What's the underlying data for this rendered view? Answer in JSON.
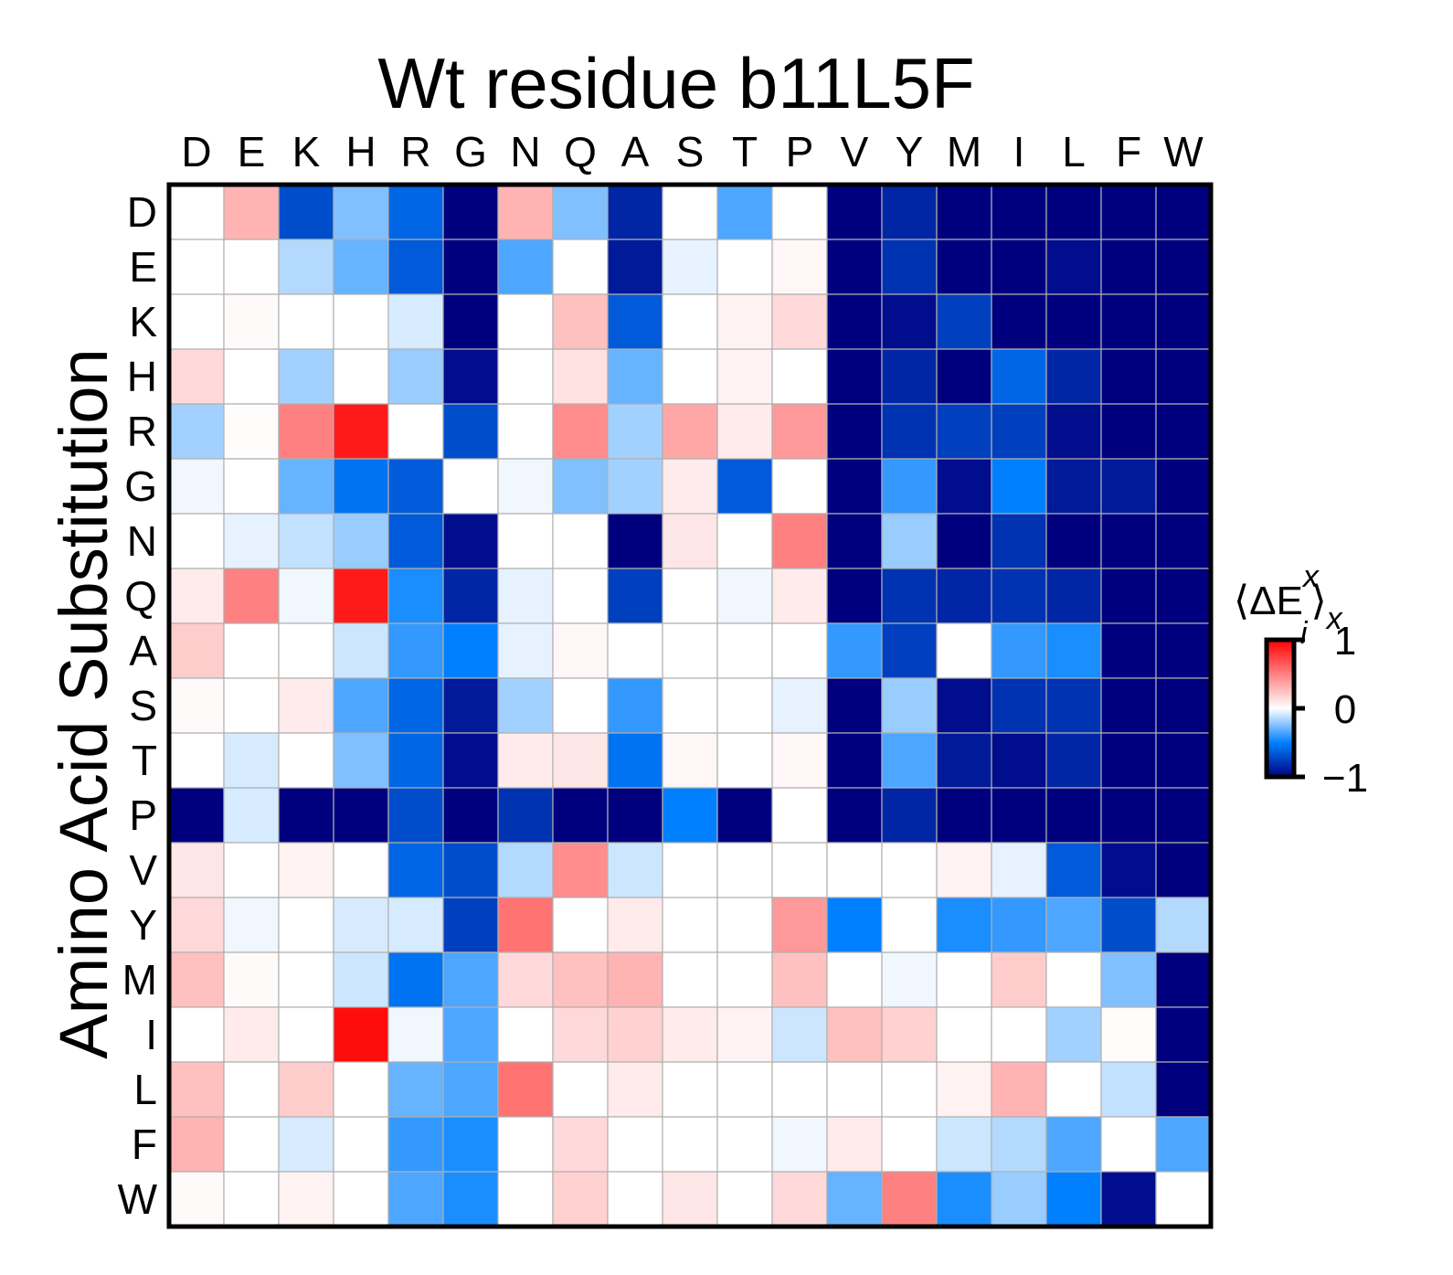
{
  "chart_data": {
    "type": "heatmap",
    "title": "Wt residue b11L5F",
    "xlabel": "",
    "ylabel": "Amino Acid Substitution",
    "x_categories": [
      "D",
      "E",
      "K",
      "H",
      "R",
      "G",
      "N",
      "Q",
      "A",
      "S",
      "T",
      "P",
      "V",
      "Y",
      "M",
      "I",
      "L",
      "F",
      "W"
    ],
    "y_categories": [
      "D",
      "E",
      "K",
      "H",
      "R",
      "G",
      "N",
      "Q",
      "A",
      "S",
      "T",
      "P",
      "V",
      "Y",
      "M",
      "I",
      "L",
      "F",
      "W"
    ],
    "values": [
      [
        0,
        0.3,
        -0.7,
        -0.25,
        -0.6,
        -1,
        0.3,
        -0.25,
        -0.85,
        0,
        -0.35,
        0,
        -1,
        -0.85,
        -1,
        -1,
        -1,
        -1,
        -1
      ],
      [
        0,
        0,
        -0.15,
        -0.3,
        -0.65,
        -1,
        -0.35,
        0,
        -0.9,
        -0.05,
        0,
        0.03,
        -1,
        -0.8,
        -1,
        -1,
        -0.95,
        -1,
        -1
      ],
      [
        0,
        0.02,
        0,
        0,
        -0.08,
        -1,
        0,
        0.25,
        -0.65,
        0,
        0.05,
        0.15,
        -1,
        -0.95,
        -0.75,
        -1,
        -1,
        -1,
        -1
      ],
      [
        0.15,
        0,
        -0.18,
        0,
        -0.2,
        -0.95,
        0,
        0.12,
        -0.3,
        0,
        0.05,
        0,
        -1,
        -0.85,
        -1,
        -0.6,
        -0.85,
        -1,
        -1
      ],
      [
        -0.18,
        0.01,
        0.5,
        0.9,
        0,
        -0.7,
        0,
        0.45,
        -0.18,
        0.35,
        0.08,
        0.4,
        -1,
        -0.8,
        -0.75,
        -0.75,
        -0.95,
        -1,
        -1
      ],
      [
        -0.03,
        0,
        -0.3,
        -0.55,
        -0.65,
        0,
        -0.03,
        -0.25,
        -0.18,
        0.08,
        -0.65,
        0,
        -1,
        -0.4,
        -0.95,
        -0.5,
        -0.9,
        -0.9,
        -1
      ],
      [
        0,
        -0.05,
        -0.12,
        -0.2,
        -0.65,
        -0.95,
        0,
        0,
        -1,
        0.1,
        0,
        0.5,
        -1,
        -0.2,
        -1,
        -0.8,
        -1,
        -1,
        -1
      ],
      [
        0.08,
        0.5,
        -0.03,
        0.9,
        -0.45,
        -0.85,
        -0.05,
        0,
        -0.75,
        0,
        -0.03,
        0.08,
        -1,
        -0.8,
        -0.85,
        -0.8,
        -0.85,
        -1,
        -1
      ],
      [
        0.2,
        0,
        0,
        -0.1,
        -0.4,
        -0.5,
        -0.05,
        0.03,
        0,
        0,
        0,
        0,
        -0.4,
        -0.75,
        0,
        -0.4,
        -0.45,
        -1,
        -1
      ],
      [
        0.02,
        0,
        0.08,
        -0.35,
        -0.6,
        -0.9,
        -0.18,
        0,
        -0.4,
        0,
        0,
        -0.05,
        -1,
        -0.2,
        -0.95,
        -0.8,
        -0.8,
        -1,
        -1
      ],
      [
        0,
        -0.08,
        0,
        -0.25,
        -0.6,
        -0.95,
        0.08,
        0.1,
        -0.55,
        0.03,
        0,
        0.03,
        -1,
        -0.35,
        -0.9,
        -0.95,
        -0.85,
        -1,
        -1
      ],
      [
        -1,
        -0.08,
        -1,
        -1,
        -0.7,
        -1,
        -0.8,
        -1,
        -1,
        -0.5,
        -1,
        0,
        -1,
        -0.85,
        -1,
        -1,
        -1,
        -1,
        -1
      ],
      [
        0.1,
        0,
        0.05,
        0,
        -0.6,
        -0.7,
        -0.15,
        0.45,
        -0.1,
        0,
        0,
        0,
        0,
        0,
        0.05,
        -0.05,
        -0.65,
        -0.95,
        -1
      ],
      [
        0.15,
        -0.03,
        0,
        -0.08,
        -0.08,
        -0.75,
        0.55,
        0,
        0.08,
        0,
        0,
        0.4,
        -0.5,
        0,
        -0.45,
        -0.4,
        -0.35,
        -0.7,
        -0.15
      ],
      [
        0.25,
        0.02,
        0,
        -0.1,
        -0.55,
        -0.35,
        0.15,
        0.25,
        0.3,
        0,
        0,
        0.25,
        0,
        -0.03,
        0,
        0.2,
        0,
        -0.25,
        -1
      ],
      [
        0,
        0.08,
        0,
        0.95,
        -0.03,
        -0.35,
        0,
        0.15,
        0.18,
        0.08,
        0.05,
        -0.1,
        0.25,
        0.18,
        0,
        0,
        -0.18,
        0.01,
        -1
      ],
      [
        0.25,
        0,
        0.2,
        0,
        -0.3,
        -0.35,
        0.55,
        0,
        0.08,
        0,
        0,
        0,
        0,
        0,
        0.05,
        0.3,
        0,
        -0.12,
        -1
      ],
      [
        0.3,
        0,
        -0.08,
        0,
        -0.4,
        -0.45,
        0,
        0.15,
        0,
        0,
        0,
        -0.03,
        0.08,
        0,
        -0.1,
        -0.15,
        -0.35,
        0,
        -0.35
      ],
      [
        0.02,
        0,
        0.05,
        0,
        -0.35,
        -0.45,
        0,
        0.18,
        0,
        0.1,
        0,
        0.15,
        -0.3,
        0.5,
        -0.45,
        -0.2,
        -0.5,
        -0.95,
        0
      ]
    ],
    "colorbar": {
      "label": "⟨ΔE",
      "label_sup": "x",
      "label_sub": "i",
      "label_close": "⟩",
      "label_outer_sub": "x",
      "ticks": [
        1,
        0,
        -1
      ],
      "tick_labels": [
        "1",
        "0",
        "−1"
      ],
      "range": [
        -1,
        1
      ],
      "colormap": "bwr"
    }
  }
}
